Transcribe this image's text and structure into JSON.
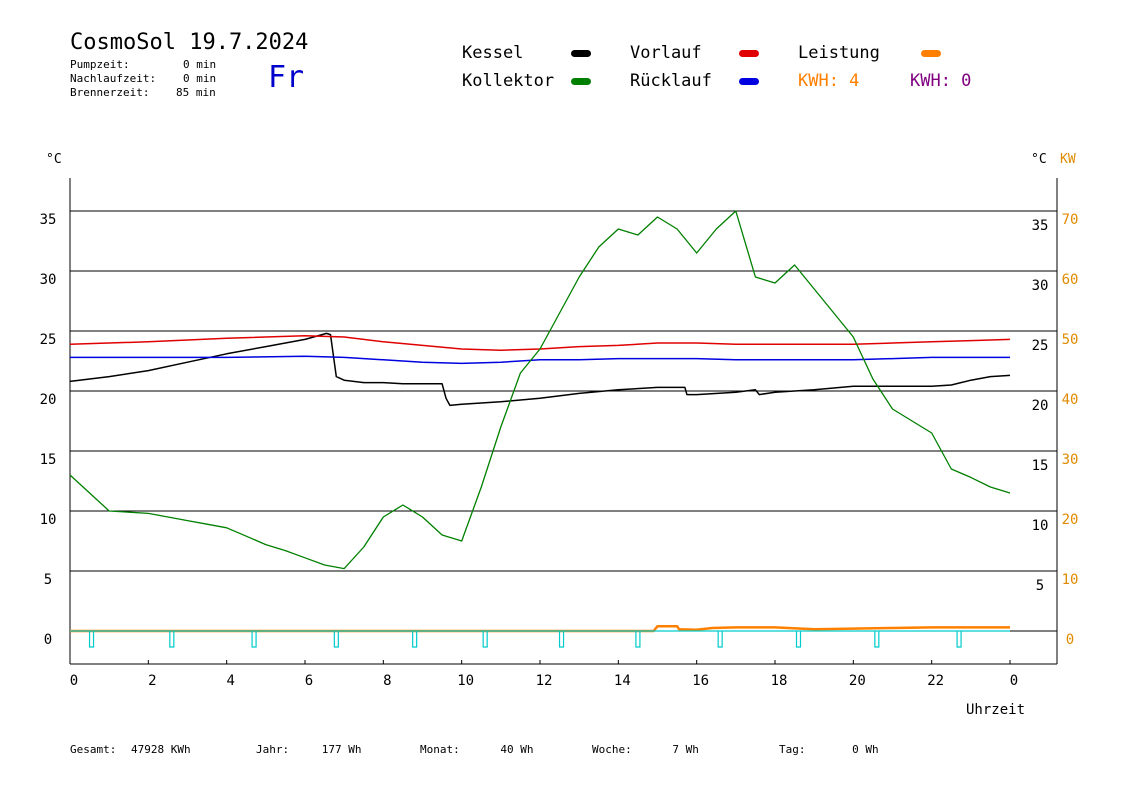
{
  "header": {
    "title": "CosmoSol 19.7.2024",
    "weekday": "Fr",
    "stats": [
      {
        "label": "Pumpzeit:",
        "value": "0 min"
      },
      {
        "label": "Nachlaufzeit:",
        "value": "0 min"
      },
      {
        "label": "Brennerzeit:",
        "value": "85 min"
      }
    ]
  },
  "legend": [
    {
      "label": "Kessel",
      "color": "#000000"
    },
    {
      "label": "Kollektor",
      "color": "#008000"
    },
    {
      "label": "Vorlauf",
      "color": "#e00000"
    },
    {
      "label": "Rücklauf",
      "color": "#0000e0"
    },
    {
      "label": "Leistung",
      "color": "#ff8000"
    }
  ],
  "kwh": [
    {
      "label": "KWH: 4",
      "color": "#ff8000"
    },
    {
      "label": "KWH: 0",
      "color": "#800080"
    }
  ],
  "axes": {
    "left_unit": "°C",
    "right_unit_c": "°C",
    "right_unit_kw": "KW",
    "xlabel": "Uhrzeit",
    "x_ticks": [
      "0",
      "2",
      "4",
      "6",
      "8",
      "10",
      "12",
      "14",
      "16",
      "18",
      "20",
      "22",
      "0"
    ],
    "y_ticks": [
      "0",
      "5",
      "10",
      "15",
      "20",
      "25",
      "30",
      "35"
    ],
    "y_right_ticks": [
      "5",
      "10",
      "15",
      "20",
      "25",
      "30",
      "35"
    ],
    "kw_ticks": [
      "0",
      "10",
      "20",
      "30",
      "40",
      "50",
      "60",
      "70"
    ]
  },
  "footer": [
    {
      "label": "Gesamt:",
      "value": "47928 KWh"
    },
    {
      "label": "Jahr:",
      "value": "177 Wh"
    },
    {
      "label": "Monat:",
      "value": "40 Wh"
    },
    {
      "label": "Woche:",
      "value": "7 Wh"
    },
    {
      "label": "Tag:",
      "value": "0 Wh"
    }
  ],
  "chart_data": {
    "type": "line",
    "xlim": [
      0,
      24
    ],
    "ylim": [
      -3,
      38.5
    ],
    "y2lim": [
      -6,
      77
    ],
    "grid": true,
    "series": [
      {
        "name": "Kessel",
        "color": "#000000",
        "axis": "left",
        "x": [
          0,
          1,
          2,
          3,
          4,
          5,
          6,
          6.55,
          6.65,
          6.8,
          7,
          7.5,
          8,
          8.5,
          9,
          9.5,
          9.6,
          9.7,
          10,
          11,
          12,
          13,
          14,
          15,
          15.7,
          15.75,
          16,
          17,
          17.5,
          17.6,
          18,
          19,
          20,
          21,
          22,
          22.5,
          23,
          23.5,
          24
        ],
        "y": [
          20.8,
          21.2,
          21.7,
          22.4,
          23.1,
          23.7,
          24.3,
          24.8,
          24.7,
          21.2,
          20.9,
          20.7,
          20.7,
          20.6,
          20.6,
          20.6,
          19.4,
          18.8,
          18.9,
          19.1,
          19.4,
          19.8,
          20.1,
          20.3,
          20.3,
          19.7,
          19.7,
          19.9,
          20.1,
          19.7,
          19.9,
          20.1,
          20.4,
          20.4,
          20.4,
          20.5,
          20.9,
          21.2,
          21.3
        ]
      },
      {
        "name": "Vorlauf",
        "color": "#e00000",
        "axis": "left",
        "x": [
          0,
          2,
          4,
          6,
          7,
          8,
          9,
          10,
          11,
          12,
          13,
          14,
          15,
          16,
          17,
          18,
          19,
          20,
          21,
          22,
          23,
          24
        ],
        "y": [
          23.9,
          24.1,
          24.4,
          24.6,
          24.5,
          24.1,
          23.8,
          23.5,
          23.4,
          23.5,
          23.7,
          23.8,
          24.0,
          24.0,
          23.9,
          23.9,
          23.9,
          23.9,
          24.0,
          24.1,
          24.2,
          24.3
        ]
      },
      {
        "name": "Rücklauf",
        "color": "#0000e0",
        "axis": "left",
        "x": [
          0,
          2,
          4,
          6,
          7,
          8,
          9,
          10,
          11,
          12,
          13,
          14,
          15,
          16,
          17,
          18,
          19,
          20,
          21,
          22,
          23,
          24
        ],
        "y": [
          22.8,
          22.8,
          22.8,
          22.9,
          22.8,
          22.6,
          22.4,
          22.3,
          22.4,
          22.6,
          22.6,
          22.7,
          22.7,
          22.7,
          22.6,
          22.6,
          22.6,
          22.6,
          22.7,
          22.8,
          22.8,
          22.8
        ]
      },
      {
        "name": "Kollektor",
        "color": "#008000",
        "axis": "left",
        "x": [
          0,
          0.5,
          1,
          1.5,
          2,
          2.5,
          3,
          3.5,
          4,
          4.5,
          5,
          5.5,
          6,
          6.5,
          7,
          7.5,
          8,
          8.5,
          9,
          9.5,
          10,
          10.5,
          11,
          11.5,
          12,
          12.5,
          13,
          13.5,
          14,
          14.5,
          15,
          15.5,
          16,
          16.5,
          17,
          17.5,
          18,
          18.5,
          19,
          19.5,
          20,
          20.5,
          21,
          21.5,
          22,
          22.5,
          23,
          23.5,
          24
        ],
        "y": [
          13,
          11.5,
          10,
          9.9,
          9.8,
          9.5,
          9.2,
          8.9,
          8.6,
          7.9,
          7.2,
          6.7,
          6.1,
          5.5,
          5.2,
          7.0,
          9.5,
          10.5,
          9.5,
          8.0,
          7.5,
          12.0,
          17.0,
          21.5,
          23.5,
          26.5,
          29.5,
          32.0,
          33.5,
          33.0,
          34.5,
          33.5,
          31.5,
          33.5,
          35.0,
          29.5,
          29.0,
          30.5,
          28.5,
          26.5,
          24.5,
          21.0,
          18.5,
          17.5,
          16.5,
          13.5,
          12.8,
          12.0,
          11.5
        ]
      },
      {
        "name": "Leistung",
        "color": "#ff8000",
        "axis": "right",
        "x": [
          0,
          14.9,
          15.0,
          15.5,
          15.55,
          16.0,
          16.4,
          17.0,
          18.0,
          19.0,
          20.0,
          21.0,
          22.0,
          23.0,
          24.0
        ],
        "y": [
          0,
          0,
          0.8,
          0.8,
          0.3,
          0.2,
          0.5,
          0.6,
          0.6,
          0.3,
          0.4,
          0.5,
          0.6,
          0.6,
          0.6
        ]
      },
      {
        "name": "Pumpe",
        "color": "#00cccc",
        "axis": "left",
        "pulses": [
          0.55,
          2.6,
          4.7,
          6.8,
          8.8,
          10.6,
          12.55,
          14.5,
          16.6,
          18.6,
          20.6,
          22.7
        ]
      }
    ]
  }
}
